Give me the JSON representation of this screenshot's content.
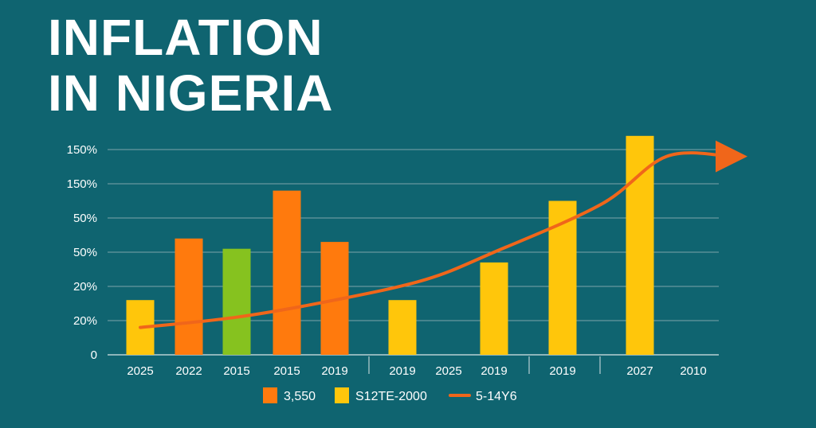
{
  "title_line1": "INFLATION",
  "title_line2": "IN NIGERIA",
  "colors": {
    "background": "#0f6470",
    "orange": "#ff7a0d",
    "yellow": "#ffc60b",
    "green": "#86c21f",
    "trend": "#f0661a",
    "grid": "#7da4aa",
    "text": "#ffffff"
  },
  "chart_data": {
    "type": "bar",
    "title": "INFLATION IN NIGERIA",
    "y_tick_labels": [
      "0",
      "20%",
      "20%",
      "50%",
      "50%",
      "150%",
      "150%"
    ],
    "x_tick_labels": [
      "2025",
      "2022",
      "2015",
      "2015",
      "2019",
      "2019",
      "2025",
      "2019",
      "2019",
      "2027",
      "2010"
    ],
    "bars": [
      {
        "label": "2025",
        "value": 1.6,
        "color": "yellow"
      },
      {
        "label": "2022",
        "value": 3.4,
        "color": "orange"
      },
      {
        "label": "2015",
        "value": 3.1,
        "color": "green"
      },
      {
        "label": "2015",
        "value": 4.8,
        "color": "orange"
      },
      {
        "label": "2019",
        "value": 3.3,
        "color": "orange"
      },
      {
        "label": "2019",
        "value": 1.6,
        "color": "yellow"
      },
      {
        "label": "2025",
        "value": null,
        "color": "yellow"
      },
      {
        "label": "2019",
        "value": 2.7,
        "color": "yellow"
      },
      {
        "label": "2019",
        "value": 4.5,
        "color": "yellow"
      },
      {
        "label": "2027",
        "value": 6.4,
        "color": "yellow"
      },
      {
        "label": "2010",
        "value": null,
        "color": "yellow"
      }
    ],
    "trend_line": [
      [
        0,
        0.8
      ],
      [
        2,
        1.1
      ],
      [
        4,
        1.6
      ],
      [
        5.5,
        2.2
      ],
      [
        7,
        3.0
      ],
      [
        8.5,
        4.4
      ],
      [
        9.5,
        5.8
      ],
      [
        10.8,
        5.8
      ]
    ],
    "legend": [
      {
        "label": "3,550",
        "type": "bar",
        "color": "orange"
      },
      {
        "label": "S12TE-2000",
        "type": "bar",
        "color": "yellow"
      },
      {
        "label": "5-14Y6",
        "type": "line",
        "color": "trend"
      }
    ],
    "grid": true,
    "legend_position": "bottom-center"
  }
}
